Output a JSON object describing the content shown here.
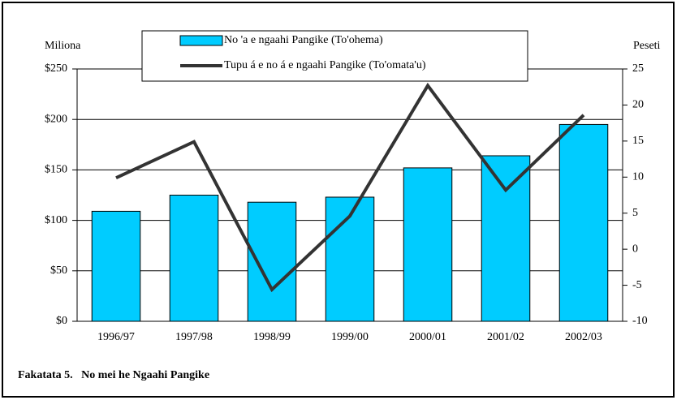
{
  "chart_data": {
    "type": "bar_line",
    "caption": "Fakatata 5.   No mei he Ngaahi Pangike",
    "y_label": "Miliona",
    "y2_label": "Peseti",
    "categories": [
      "1996/97",
      "1997/98",
      "1998/99",
      "1999/00",
      "2000/01",
      "2001/02",
      "2002/03"
    ],
    "series": [
      {
        "name": "No 'a e ngaahi Pangike (To'ohema)",
        "type": "bar",
        "color": "#00ccff",
        "values": [
          109,
          125,
          118,
          123,
          152,
          164,
          195
        ]
      },
      {
        "name": "Tupu á e no á e ngaahi Pangike (To'omata'u)",
        "type": "line",
        "axis": "y2",
        "color": "#333333",
        "values": [
          9.9,
          14.9,
          -5.6,
          4.6,
          22.7,
          8.2,
          18.6
        ]
      }
    ],
    "ylim": [
      0,
      250
    ],
    "yticks": [
      {
        "value": 0,
        "label": "$0"
      },
      {
        "value": 50,
        "label": "$50"
      },
      {
        "value": 100,
        "label": "$100"
      },
      {
        "value": 150,
        "label": "$150"
      },
      {
        "value": 200,
        "label": "$200"
      },
      {
        "value": 250,
        "label": "$250"
      }
    ],
    "y2lim": [
      -10,
      25
    ],
    "y2ticks": [
      -10,
      -5,
      0,
      5,
      10,
      15,
      20,
      25
    ],
    "grid": true
  }
}
